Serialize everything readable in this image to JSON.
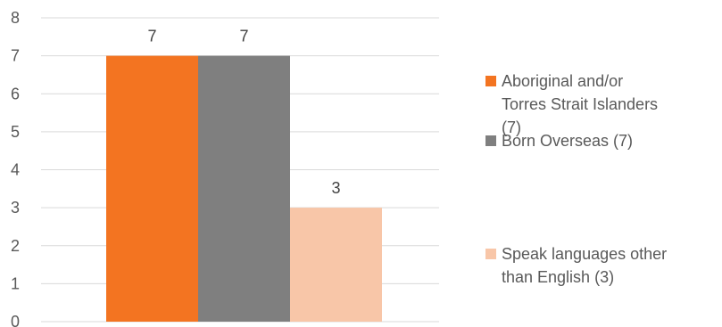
{
  "chart_data": {
    "type": "bar",
    "categories": [
      ""
    ],
    "series": [
      {
        "name": "Aboriginal and/or Torres Strait Islanders (7)",
        "values": [
          7
        ],
        "color": "#F37421",
        "label": "7"
      },
      {
        "name": "Born Overseas (7)",
        "values": [
          7
        ],
        "color": "#7F7F7F",
        "label": "7"
      },
      {
        "name": "Speak languages other than English (3)",
        "values": [
          3
        ],
        "color": "#F8C6A8",
        "label": "3"
      }
    ],
    "ylim": [
      0,
      8
    ],
    "yticks": [
      "0",
      "1",
      "2",
      "3",
      "4",
      "5",
      "6",
      "7",
      "8"
    ],
    "grid": true,
    "legend_position": "right",
    "legend_lines": [
      [
        "Aboriginal and/or",
        "Torres Strait Islanders",
        "(7)"
      ],
      [
        "Born Overseas (7)"
      ],
      [
        "Speak languages other",
        "than English (3)"
      ]
    ],
    "title": "",
    "xlabel": "",
    "ylabel": ""
  }
}
